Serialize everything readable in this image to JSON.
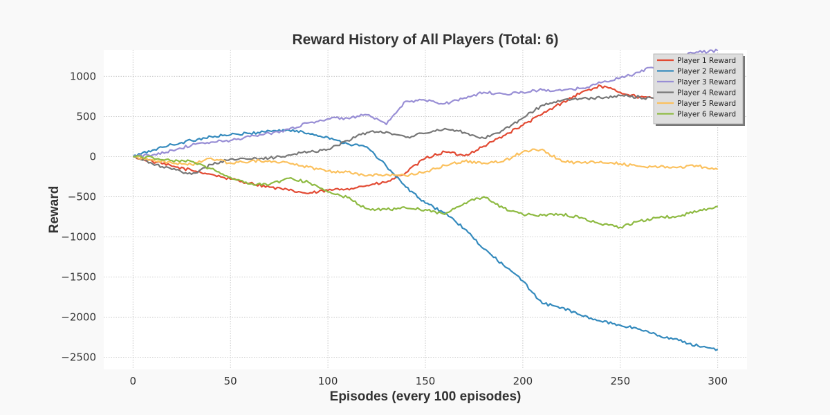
{
  "chart_data": {
    "type": "line",
    "title": "Reward History of All Players (Total: 6)",
    "xlabel": "Episodes (every 100 episodes)",
    "ylabel": "Reward",
    "xlim": [
      -15,
      315
    ],
    "ylim": [
      -2650,
      1330
    ],
    "xticks": [
      0,
      50,
      100,
      150,
      200,
      250,
      300
    ],
    "yticks": [
      1000,
      500,
      0,
      -500,
      -1000,
      -1500,
      -2000,
      -2500
    ],
    "xtick_labels": [
      "0",
      "50",
      "100",
      "150",
      "200",
      "250",
      "300"
    ],
    "ytick_labels": [
      "1000",
      "500",
      "0",
      "−500",
      "−1000",
      "−1500",
      "−2000",
      "−2500"
    ],
    "grid": true,
    "legend_position": "top-right",
    "x": [
      0,
      10,
      20,
      30,
      40,
      50,
      60,
      70,
      80,
      90,
      100,
      110,
      120,
      130,
      140,
      150,
      160,
      170,
      180,
      190,
      200,
      210,
      220,
      230,
      240,
      250,
      260,
      270,
      280,
      290,
      300
    ],
    "series": [
      {
        "name": "Player 1 Reward",
        "color": "#E24A33",
        "values": [
          0,
          -60,
          -120,
          -170,
          -220,
          -280,
          -330,
          -380,
          -420,
          -460,
          -420,
          -400,
          -360,
          -320,
          -200,
          -20,
          60,
          10,
          130,
          260,
          390,
          530,
          670,
          800,
          880,
          800,
          740,
          720,
          720,
          710,
          700
        ]
      },
      {
        "name": "Player 2 Reward",
        "color": "#348ABD",
        "values": [
          0,
          80,
          150,
          200,
          250,
          270,
          290,
          320,
          330,
          290,
          240,
          160,
          120,
          -120,
          -380,
          -580,
          -700,
          -900,
          -1150,
          -1350,
          -1550,
          -1830,
          -1880,
          -1980,
          -2050,
          -2100,
          -2150,
          -2230,
          -2290,
          -2360,
          -2400
        ]
      },
      {
        "name": "Player 3 Reward",
        "color": "#988ED5",
        "values": [
          0,
          20,
          80,
          140,
          180,
          200,
          250,
          290,
          340,
          420,
          470,
          480,
          520,
          400,
          690,
          700,
          660,
          730,
          800,
          780,
          800,
          830,
          820,
          850,
          920,
          980,
          1050,
          1150,
          1250,
          1300,
          1320
        ]
      },
      {
        "name": "Player 4 Reward",
        "color": "#777777",
        "values": [
          0,
          -90,
          -160,
          -220,
          -100,
          -30,
          -30,
          -20,
          20,
          60,
          90,
          200,
          300,
          310,
          240,
          290,
          350,
          300,
          230,
          330,
          480,
          640,
          700,
          720,
          730,
          760,
          740,
          710,
          690,
          680,
          660
        ]
      },
      {
        "name": "Player 5 Reward",
        "color": "#FBC15E",
        "values": [
          0,
          -40,
          -80,
          -100,
          -20,
          -80,
          -60,
          -50,
          -80,
          -130,
          -180,
          -190,
          -240,
          -220,
          -240,
          -190,
          -110,
          -60,
          -80,
          -60,
          60,
          90,
          -60,
          -80,
          -60,
          -90,
          -120,
          -130,
          -130,
          -120,
          -160
        ]
      },
      {
        "name": "Player 6 Reward",
        "color": "#8EBA42",
        "values": [
          0,
          -10,
          -50,
          -60,
          -150,
          -260,
          -340,
          -350,
          -270,
          -320,
          -440,
          -510,
          -650,
          -660,
          -640,
          -660,
          -720,
          -580,
          -500,
          -640,
          -720,
          -730,
          -720,
          -760,
          -840,
          -880,
          -800,
          -760,
          -740,
          -680,
          -620
        ]
      }
    ]
  }
}
